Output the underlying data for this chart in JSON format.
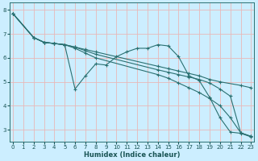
{
  "background_color": "#cceeff",
  "grid_color": "#e8b8b8",
  "line_color": "#2a7070",
  "xlabel": "Humidex (Indice chaleur)",
  "xlim": [
    -0.3,
    23.3
  ],
  "ylim": [
    2.5,
    8.3
  ],
  "xticks": [
    0,
    1,
    2,
    3,
    4,
    5,
    6,
    7,
    8,
    9,
    10,
    11,
    12,
    13,
    14,
    15,
    16,
    17,
    18,
    19,
    20,
    21,
    22,
    23
  ],
  "yticks": [
    3,
    4,
    5,
    6,
    7,
    8
  ],
  "series": [
    {
      "x": [
        0,
        2,
        3,
        4,
        5,
        6,
        7,
        8,
        9,
        10,
        11,
        12,
        13,
        14,
        15,
        16,
        17,
        18,
        19,
        20,
        21,
        22,
        23
      ],
      "y": [
        7.85,
        6.85,
        6.65,
        6.6,
        6.55,
        4.7,
        5.25,
        5.75,
        5.7,
        6.05,
        6.25,
        6.4,
        6.4,
        6.55,
        6.5,
        6.05,
        5.25,
        5.05,
        4.35,
        3.5,
        2.9,
        2.85,
        2.7
      ]
    },
    {
      "x": [
        0,
        2,
        3,
        4,
        5,
        6,
        7,
        8,
        14,
        15,
        16,
        17,
        18,
        19,
        20,
        22,
        23
      ],
      "y": [
        7.85,
        6.85,
        6.65,
        6.6,
        6.55,
        6.45,
        6.35,
        6.25,
        5.65,
        5.55,
        5.45,
        5.35,
        5.25,
        5.1,
        5.0,
        4.85,
        4.75
      ]
    },
    {
      "x": [
        0,
        2,
        3,
        4,
        5,
        6,
        7,
        8,
        14,
        15,
        16,
        17,
        18,
        19,
        20,
        21,
        22,
        23
      ],
      "y": [
        7.85,
        6.85,
        6.65,
        6.6,
        6.55,
        6.45,
        6.3,
        6.15,
        5.5,
        5.4,
        5.3,
        5.2,
        5.1,
        4.95,
        4.7,
        4.4,
        2.87,
        2.72
      ]
    },
    {
      "x": [
        0,
        2,
        3,
        4,
        5,
        6,
        7,
        8,
        14,
        15,
        16,
        17,
        18,
        19,
        20,
        21,
        22,
        23
      ],
      "y": [
        7.85,
        6.85,
        6.65,
        6.6,
        6.55,
        6.4,
        6.2,
        6.0,
        5.3,
        5.15,
        4.95,
        4.75,
        4.55,
        4.3,
        4.0,
        3.5,
        2.87,
        2.72
      ]
    }
  ],
  "marker": "+",
  "markersize": 3,
  "linewidth": 0.8,
  "xlabel_fontsize": 6,
  "tick_labelsize": 5
}
